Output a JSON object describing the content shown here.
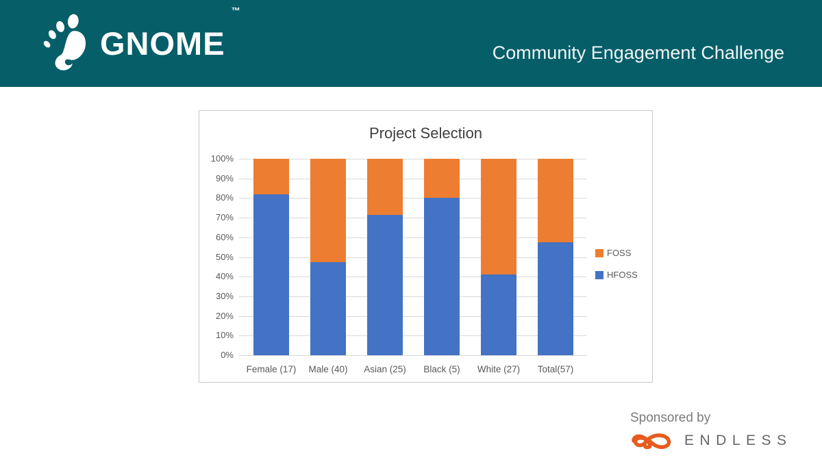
{
  "header": {
    "brand": "GNOME",
    "trademark": "™",
    "title": "Community Engagement Challenge",
    "background_color": "#065E69",
    "text_color": "#FFFFFF"
  },
  "chart_data": {
    "type": "bar",
    "stacked": true,
    "title": "Project Selection",
    "categories": [
      "Female (17)",
      "Male (40)",
      "Asian (25)",
      "Black (5)",
      "White (27)",
      "Total(57)"
    ],
    "series": [
      {
        "name": "HFOSS",
        "color": "#4472C4",
        "values": [
          82,
          47.5,
          71.5,
          80,
          41,
          57.5
        ]
      },
      {
        "name": "FOSS",
        "color": "#ED7D31",
        "values": [
          18,
          52.5,
          28.5,
          20,
          59,
          42.5
        ]
      }
    ],
    "xlabel": "",
    "ylabel": "",
    "ylim": [
      0,
      100
    ],
    "y_tick_step": 10,
    "y_tick_suffix": "%",
    "grid": true,
    "gridline_color": "#D9D9D9",
    "legend_position": "right",
    "legend": [
      "FOSS",
      "HFOSS"
    ]
  },
  "footer": {
    "sponsored_by": "Sponsored by",
    "sponsor_name": "ENDLESS",
    "sponsor_logo_color": "#E55C1F"
  }
}
